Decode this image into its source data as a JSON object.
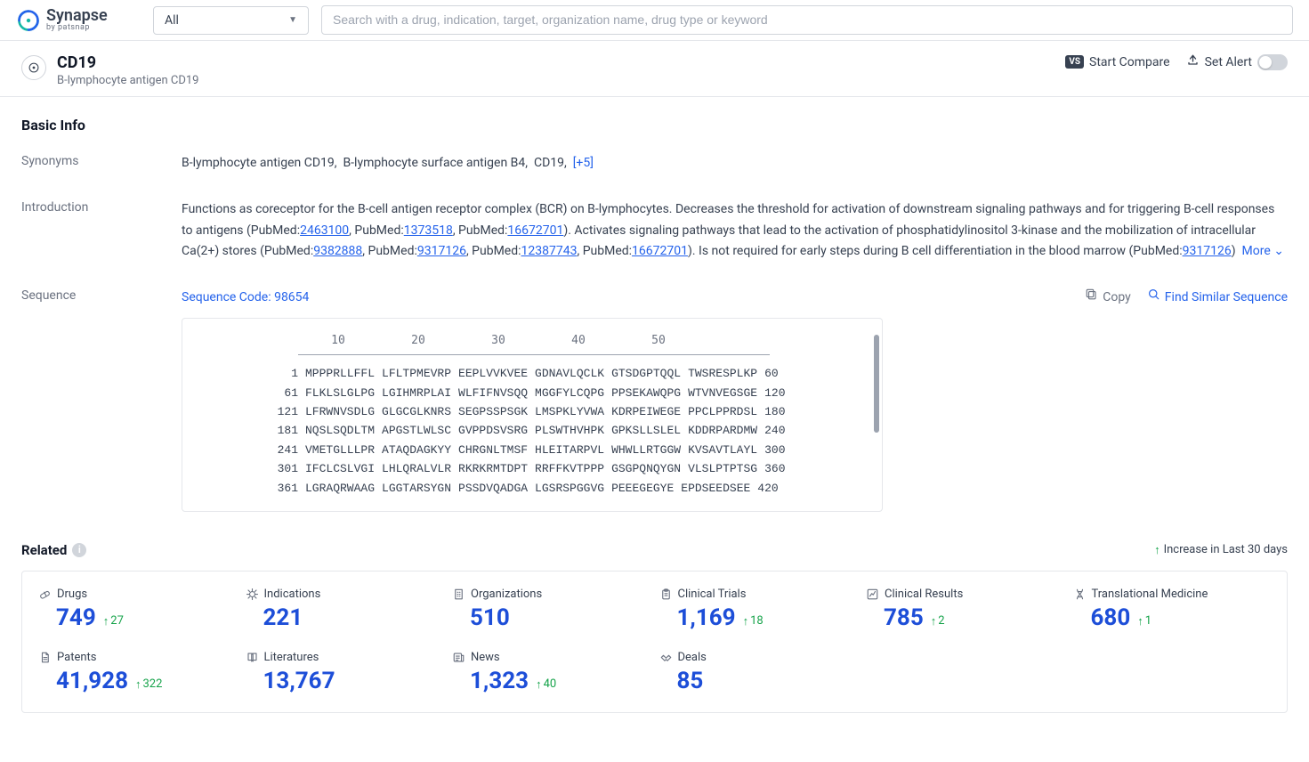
{
  "brand": {
    "name": "Synapse",
    "byline": "by patsnap"
  },
  "topbar": {
    "filter_label": "All",
    "search_placeholder": "Search with a drug, indication, target, organization name, drug type or keyword"
  },
  "header": {
    "title": "CD19",
    "subtitle": "B-lymphocyte antigen CD19",
    "compare_label": "Start Compare",
    "alert_label": "Set Alert"
  },
  "basic_info": {
    "section_title": "Basic Info",
    "synonyms": {
      "label": "Synonyms",
      "items": [
        "B-lymphocyte antigen CD19",
        "B-lymphocyte surface antigen B4",
        "CD19"
      ],
      "extra": "[+5]"
    },
    "introduction": {
      "label": "Introduction",
      "text_start": "Functions as coreceptor for the B-cell antigen receptor complex (BCR) on B-lymphocytes. Decreases the threshold for activation of downstream signaling pathways and for triggering B-cell responses to antigens (PubMed:",
      "pm1": "2463100",
      "mid1": ", PubMed:",
      "pm2": "1373518",
      "mid2": ", PubMed:",
      "pm3": "16672701",
      "mid3": "). Activates signaling pathways that lead to the activation of phosphatidylinositol 3-kinase and the mobilization of intracellular Ca(2+) stores (PubMed:",
      "pm4": "9382888",
      "mid4": ", PubMed:",
      "pm5": "9317126",
      "mid5": ", PubMed:",
      "pm6": "12387743",
      "mid6": ", PubMed:",
      "pm7": "16672701",
      "mid7": "). Is not required for early steps during B cell differentiation in the blood marrow (PubMed:",
      "pm8": "9317126",
      "mid8": ")",
      "more": "More"
    },
    "sequence": {
      "label": "Sequence",
      "code_label": "Sequence Code: 98654",
      "copy_label": "Copy",
      "find_label": "Find Similar Sequence",
      "ruler": [
        "10",
        "20",
        "30",
        "40",
        "50"
      ],
      "lines": [
        {
          "start": "1",
          "chunks": [
            "MPPPRLLFFL",
            "LFLTPMEVRP",
            "EEPLVVKVEE",
            "GDNAVLQCLK",
            "GTSDGPTQQL",
            "TWSRESPLKP"
          ],
          "end": "60"
        },
        {
          "start": "61",
          "chunks": [
            "FLKLSLGLPG",
            "LGIHMRPLAI",
            "WLFIFNVSQQ",
            "MGGFYLCQPG",
            "PPSEKAWQPG",
            "WTVNVEGSGE"
          ],
          "end": "120"
        },
        {
          "start": "121",
          "chunks": [
            "LFRWNVSDLG",
            "GLGCGLKNRS",
            "SEGPSSPSGK",
            "LMSPKLYVWA",
            "KDRPEIWEGE",
            "PPCLPPRDSL"
          ],
          "end": "180"
        },
        {
          "start": "181",
          "chunks": [
            "NQSLSQDLTM",
            "APGSTLWLSC",
            "GVPPDSVSRG",
            "PLSWTHVHPK",
            "GPKSLLSLEL",
            "KDDRPARDMW"
          ],
          "end": "240"
        },
        {
          "start": "241",
          "chunks": [
            "VMETGLLLPR",
            "ATAQDAGKYY",
            "CHRGNLTMSF",
            "HLEITARPVL",
            "WHWLLRTGGW",
            "KVSAVTLAYL"
          ],
          "end": "300"
        },
        {
          "start": "301",
          "chunks": [
            "IFCLCSLVGI",
            "LHLQRALVLR",
            "RKRKRMTDPT",
            "RRFFKVTPPP",
            "GSGPQNQYGN",
            "VLSLPTPTSG"
          ],
          "end": "360"
        },
        {
          "start": "361",
          "chunks": [
            "LGRAQRWAAG",
            "LGGTARSYGN",
            "PSSDVQADGA",
            "LGSRSPGGVG",
            "PEEEGEGYE",
            "EPDSEEDSEE"
          ],
          "end": "420"
        }
      ]
    }
  },
  "related": {
    "title": "Related",
    "legend": "Increase in Last 30 days",
    "cards": [
      {
        "label": "Drugs",
        "value": "749",
        "delta": "27",
        "icon": "pill"
      },
      {
        "label": "Indications",
        "value": "221",
        "delta": null,
        "icon": "virus"
      },
      {
        "label": "Organizations",
        "value": "510",
        "delta": null,
        "icon": "building"
      },
      {
        "label": "Clinical Trials",
        "value": "1,169",
        "delta": "18",
        "icon": "clipboard"
      },
      {
        "label": "Clinical Results",
        "value": "785",
        "delta": "2",
        "icon": "chart"
      },
      {
        "label": "Translational Medicine",
        "value": "680",
        "delta": "1",
        "icon": "dna"
      },
      {
        "label": "Patents",
        "value": "41,928",
        "delta": "322",
        "icon": "doc"
      },
      {
        "label": "Literatures",
        "value": "13,767",
        "delta": null,
        "icon": "book"
      },
      {
        "label": "News",
        "value": "1,323",
        "delta": "40",
        "icon": "news"
      },
      {
        "label": "Deals",
        "value": "85",
        "delta": null,
        "icon": "handshake"
      }
    ]
  },
  "colors": {
    "link": "#2563eb",
    "value": "#1d4ed8",
    "delta": "#16a34a",
    "muted": "#6b7280",
    "border": "#e5e7eb"
  }
}
